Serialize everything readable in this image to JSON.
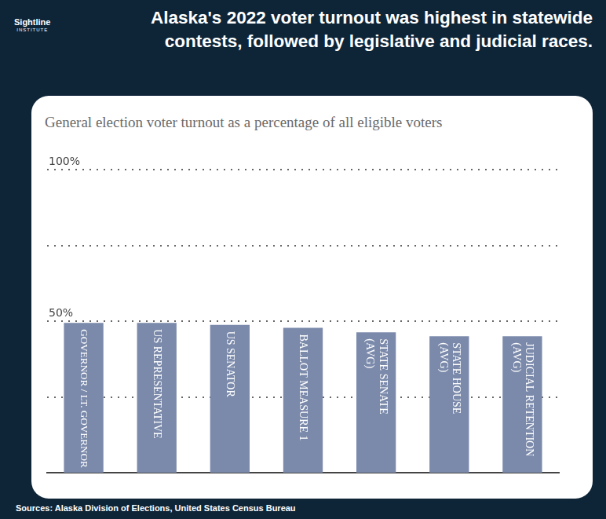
{
  "logo": {
    "name": "Sightline",
    "sub": "INSTITUTE"
  },
  "chart_data": {
    "type": "bar",
    "title": "Alaska's 2022 voter turnout was highest in statewide contests, followed by legislative and judicial races.",
    "subtitle": "General election voter turnout as a percentage of all eligible voters",
    "categories": [
      "GOVERNOR / LT. GOVERNOR",
      "US REPRESENTATIVE",
      "US SENATOR",
      "BALLOT MEASURE 1",
      "STATE SENATE (AVG)",
      "STATE HOUSE (AVG)",
      "JUDICIAL RETENTION (AVG)"
    ],
    "values": [
      49.4,
      49.4,
      48.8,
      47.8,
      46.3,
      45.0,
      45.0
    ],
    "color": "#7b8aab",
    "ylim": [
      0,
      100
    ],
    "yticks": [
      {
        "value": 25,
        "label": null
      },
      {
        "value": 50,
        "label": "50%"
      },
      {
        "value": 75,
        "label": null
      },
      {
        "value": 100,
        "label": "100%"
      }
    ],
    "grid": true
  },
  "footer": {
    "sources": "Sources: Alaska Division of Elections, United States Census Bureau"
  }
}
